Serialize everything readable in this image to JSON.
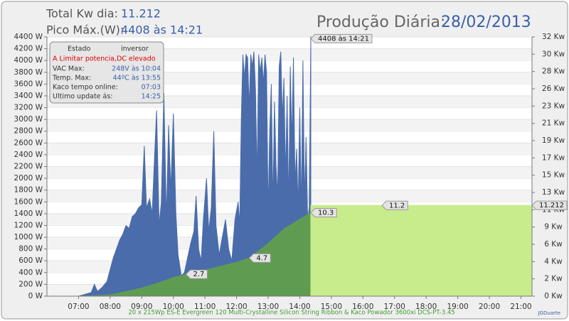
{
  "header": {
    "total_label": "Total Kw dia:",
    "total_value": "11.212",
    "peak_label": "Pico Máx.(W):",
    "peak_value": "4408 às 14:21",
    "title": "Produção Diária:",
    "date": "28/02/2013"
  },
  "status_box": {
    "title_left": "Estado",
    "title_right": "inversor",
    "state": "A Limitar potencia,DC elevado",
    "rows": [
      [
        "VAC Max:",
        "248V às 10:04"
      ],
      [
        "Temp. Max:",
        "44ºC às 13:55"
      ],
      [
        "Kaco tempo online:",
        "07:03"
      ],
      [
        "Ultimo update ás:",
        "14:25"
      ]
    ]
  },
  "footer": {
    "caption": "20 x 215Wp ES-E Evergreen 120 Multi-Crystalline Silicon String Ribbon & Kaco Powador 3600xi DCS-PT-3.45",
    "author": "JGDuarte"
  },
  "chart_data": {
    "type": "area",
    "xlim": [
      6,
      21.35
    ],
    "xticks": [
      {
        "value": 7,
        "label": "07:00"
      },
      {
        "value": 8,
        "label": "08:00"
      },
      {
        "value": 9,
        "label": "09:00"
      },
      {
        "value": 10,
        "label": "10:00"
      },
      {
        "value": 11,
        "label": "11:00"
      },
      {
        "value": 12,
        "label": "12:00"
      },
      {
        "value": 13,
        "label": "13:00"
      },
      {
        "value": 14,
        "label": "14:00"
      },
      {
        "value": 15,
        "label": "15:00"
      },
      {
        "value": 16,
        "label": "16:00"
      },
      {
        "value": 17,
        "label": "17:00"
      },
      {
        "value": 18,
        "label": "18:00"
      },
      {
        "value": 19,
        "label": "19:00"
      },
      {
        "value": 20,
        "label": "20:00"
      },
      {
        "value": 21,
        "label": "21:00"
      }
    ],
    "ylim": [
      0,
      4400
    ],
    "yticks": [
      {
        "value": 0,
        "label": "0 W"
      },
      {
        "value": 200,
        "label": "200 W"
      },
      {
        "value": 400,
        "label": "400 W"
      },
      {
        "value": 600,
        "label": "600 W"
      },
      {
        "value": 800,
        "label": "800 W"
      },
      {
        "value": 1000,
        "label": "1000 W"
      },
      {
        "value": 1200,
        "label": "1200 W"
      },
      {
        "value": 1400,
        "label": "1400 W"
      },
      {
        "value": 1600,
        "label": "1600 W"
      },
      {
        "value": 1800,
        "label": "1800 W"
      },
      {
        "value": 2000,
        "label": "2000 W"
      },
      {
        "value": 2200,
        "label": "2200 W"
      },
      {
        "value": 2400,
        "label": "2400 W"
      },
      {
        "value": 2600,
        "label": "2600 W"
      },
      {
        "value": 2800,
        "label": "2800 W"
      },
      {
        "value": 3000,
        "label": "3000 W"
      },
      {
        "value": 3200,
        "label": "3200 W"
      },
      {
        "value": 3400,
        "label": "3400 W"
      },
      {
        "value": 3600,
        "label": "3600 W"
      },
      {
        "value": 3800,
        "label": "3800 W"
      },
      {
        "value": 4000,
        "label": "4000 W"
      },
      {
        "value": 4200,
        "label": "4200 W"
      },
      {
        "value": 4400,
        "label": "4400 W"
      }
    ],
    "y2lim": [
      0,
      32
    ],
    "y2ticks": [
      {
        "value": 0,
        "label": "0 Kw"
      },
      {
        "value": 2.133,
        "label": "2 Kw"
      },
      {
        "value": 4.267,
        "label": "4 Kw"
      },
      {
        "value": 6.4,
        "label": "6 Kw"
      },
      {
        "value": 8.533,
        "label": "9 Kw"
      },
      {
        "value": 10.667,
        "label": "11 Kw"
      },
      {
        "value": 12.8,
        "label": "13 Kw"
      },
      {
        "value": 14.933,
        "label": "15 Kw"
      },
      {
        "value": 17.067,
        "label": "17 Kw"
      },
      {
        "value": 19.2,
        "label": "19 Kw"
      },
      {
        "value": 21.333,
        "label": "21 Kw"
      },
      {
        "value": 23.467,
        "label": "23 Kw"
      },
      {
        "value": 25.6,
        "label": "26 Kw"
      },
      {
        "value": 27.733,
        "label": "28 Kw"
      },
      {
        "value": 29.867,
        "label": "30 Kw"
      },
      {
        "value": 32,
        "label": "32 Kw"
      }
    ],
    "grid": true,
    "series": [
      {
        "color": "#4a6cab",
        "axis": "y",
        "x": [
          7.0,
          7.2,
          7.4,
          7.5,
          7.6,
          7.75,
          7.9,
          8.0,
          8.1,
          8.2,
          8.3,
          8.4,
          8.5,
          8.6,
          8.7,
          8.8,
          8.9,
          9.0,
          9.08,
          9.15,
          9.25,
          9.33,
          9.4,
          9.47,
          9.55,
          9.62,
          9.7,
          9.78,
          9.85,
          9.92,
          10.0,
          10.08,
          10.15,
          10.25,
          10.35,
          10.45,
          10.55,
          10.65,
          10.72,
          10.8,
          10.88,
          10.95,
          11.05,
          11.12,
          11.2,
          11.28,
          11.35,
          11.45,
          11.55,
          11.65,
          11.75,
          11.85,
          11.95,
          12.05,
          12.1,
          12.15,
          12.2,
          12.25,
          12.3,
          12.35,
          12.4,
          12.45,
          12.5,
          12.55,
          12.6,
          12.65,
          12.7,
          12.75,
          12.8,
          12.85,
          12.9,
          12.95,
          13.0,
          13.05,
          13.1,
          13.15,
          13.2,
          13.25,
          13.3,
          13.35,
          13.4,
          13.45,
          13.5,
          13.55,
          13.6,
          13.65,
          13.7,
          13.75,
          13.8,
          13.85,
          13.9,
          13.95,
          14.0,
          14.05,
          14.1,
          14.15,
          14.2,
          14.25,
          14.3,
          14.35
        ],
        "values": [
          0,
          30,
          60,
          200,
          80,
          150,
          250,
          450,
          650,
          800,
          950,
          1050,
          1200,
          1150,
          1350,
          1400,
          1500,
          1550,
          2550,
          1500,
          1650,
          1400,
          2300,
          3150,
          1200,
          1600,
          3450,
          1300,
          2900,
          1800,
          3100,
          1400,
          700,
          350,
          400,
          650,
          900,
          1100,
          1700,
          800,
          600,
          1300,
          2000,
          1100,
          1500,
          2800,
          1200,
          700,
          1000,
          1300,
          800,
          600,
          1300,
          1600,
          1200,
          3000,
          4100,
          3700,
          4100,
          4050,
          3200,
          4100,
          3900,
          4150,
          3500,
          2000,
          4100,
          3800,
          4050,
          3600,
          4100,
          3800,
          1400,
          2800,
          3600,
          1500,
          3300,
          2200,
          1700,
          3900,
          4150,
          3000,
          3700,
          2000,
          3400,
          1500,
          3900,
          2600,
          4050,
          1900,
          2500,
          1500,
          3200,
          1400,
          4000,
          1600,
          2700,
          1300,
          1500,
          4408
        ]
      },
      {
        "color": "#5f9c52",
        "axis": "y2",
        "x": [
          7,
          8,
          9,
          9.5,
          10,
          10.4,
          11,
          11.5,
          12,
          12.4,
          13,
          13.5,
          14,
          14.35
        ],
        "values": [
          0,
          0.15,
          1.0,
          1.6,
          2.3,
          2.7,
          3.2,
          3.7,
          4.2,
          4.7,
          6.5,
          8.3,
          9.5,
          10.3
        ]
      },
      {
        "color": "#c8eb8c",
        "axis": "y2",
        "x": [
          14.35,
          21.35
        ],
        "values": [
          11.212,
          11.212
        ]
      }
    ],
    "annotations": [
      {
        "x": 14.35,
        "y": 4408,
        "axis": "y",
        "label": "4408 às 14:21"
      },
      {
        "x": 10.4,
        "y": 2.7,
        "axis": "y2"
      },
      {
        "x": 12.4,
        "y": 4.7,
        "axis": "y2"
      },
      {
        "x": 14.35,
        "y": 10.3,
        "axis": "y2"
      },
      {
        "x": 16.6,
        "y": 11.2,
        "axis": "y2"
      },
      {
        "x": 21.35,
        "y": 11.212,
        "axis": "y2"
      }
    ]
  }
}
